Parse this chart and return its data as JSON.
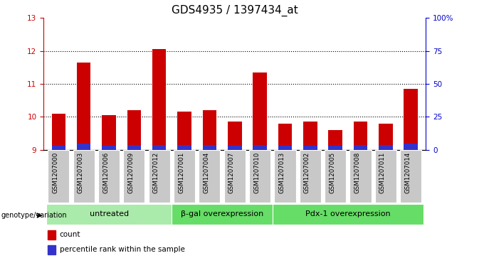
{
  "title": "GDS4935 / 1397434_at",
  "samples": [
    "GSM1207000",
    "GSM1207003",
    "GSM1207006",
    "GSM1207009",
    "GSM1207012",
    "GSM1207001",
    "GSM1207004",
    "GSM1207007",
    "GSM1207010",
    "GSM1207013",
    "GSM1207002",
    "GSM1207005",
    "GSM1207008",
    "GSM1207011",
    "GSM1207014"
  ],
  "count_values": [
    10.1,
    11.65,
    10.05,
    10.2,
    12.05,
    10.15,
    10.2,
    9.85,
    11.35,
    9.8,
    9.85,
    9.6,
    9.85,
    9.8,
    10.85
  ],
  "percentile_values": [
    3.0,
    4.5,
    3.0,
    3.5,
    3.8,
    3.8,
    3.8,
    3.0,
    3.8,
    3.0,
    3.0,
    3.0,
    3.5,
    3.5,
    4.5
  ],
  "groups": [
    {
      "label": "untreated",
      "start": 0,
      "end": 5
    },
    {
      "label": "β-gal overexpression",
      "start": 5,
      "end": 9
    },
    {
      "label": "Pdx-1 overexpression",
      "start": 9,
      "end": 15
    }
  ],
  "ylim_left": [
    9,
    13
  ],
  "ylim_right": [
    0,
    100
  ],
  "yticks_left": [
    9,
    10,
    11,
    12,
    13
  ],
  "yticks_right": [
    0,
    25,
    50,
    75,
    100
  ],
  "yticklabels_right": [
    "0",
    "25",
    "50",
    "75",
    "100%"
  ],
  "bar_color_red": "#cc0000",
  "bar_color_blue": "#3333cc",
  "bar_width": 0.55,
  "bg_color_plot": "#ffffff",
  "bg_color_xticklabels": "#c8c8c8",
  "group_color_light": "#aaeaaa",
  "group_color_medium": "#66dd66",
  "grid_color": "#000000",
  "title_fontsize": 11,
  "tick_fontsize": 7.5,
  "group_fontsize": 8,
  "legend_fontsize": 7.5,
  "ylabel_left_color": "#cc0000",
  "ylabel_right_color": "#0000cc"
}
